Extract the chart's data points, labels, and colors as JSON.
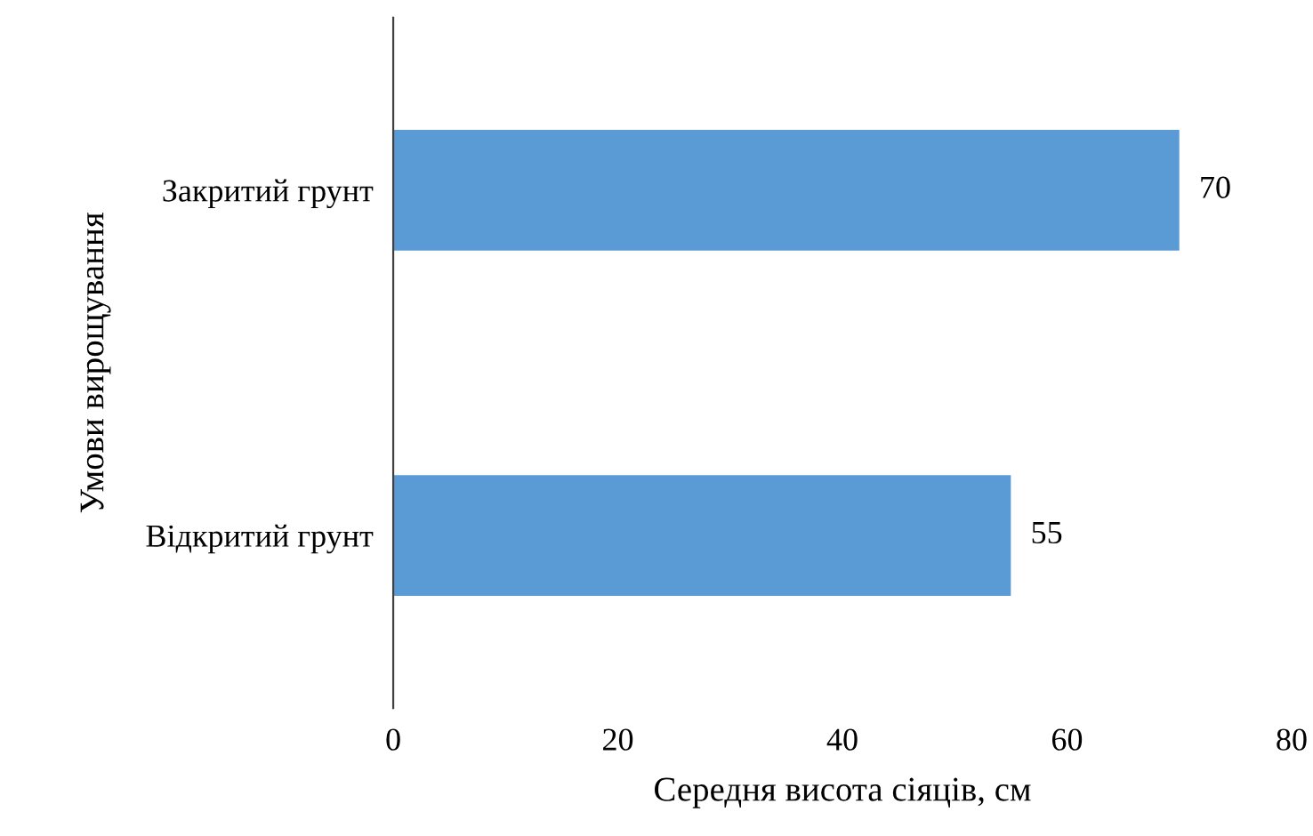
{
  "chart_data": {
    "type": "bar",
    "orientation": "horizontal",
    "categories": [
      "Закритий грунт",
      "Відкритий грунт"
    ],
    "values": [
      70,
      55
    ],
    "color": "#5b9bd5",
    "xlabel": "Середня висота сіяців, см",
    "ylabel": "Умови вирощування",
    "xlim": [
      0,
      80
    ],
    "xticks": [
      0,
      20,
      40,
      60,
      80
    ],
    "grid": false,
    "data_labels": true,
    "legend": false
  }
}
